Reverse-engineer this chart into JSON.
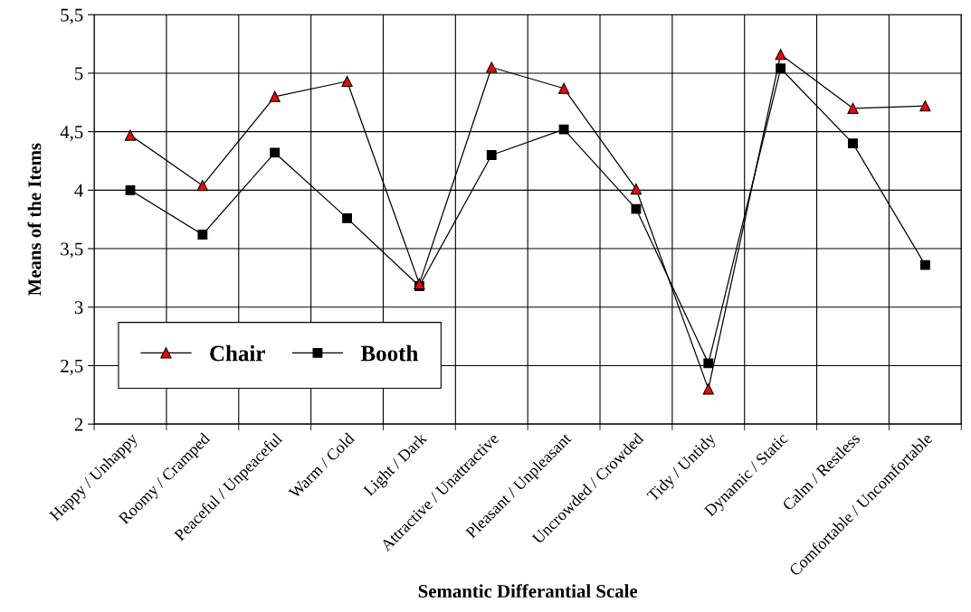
{
  "chart_data": {
    "type": "line",
    "xlabel": "Semantic Differantial Scale",
    "ylabel": "Means of the Items",
    "categories": [
      "Happy / Unhappy",
      "Roomy / Cramped",
      "Peaceful / Unpeaceful",
      "Warm / Cold",
      "Light / Dark",
      "Attractive / Unattractive",
      "Pleasant / Unpleasant",
      "Uncrowded / Crowded",
      "Tidy / Untidy",
      "Dynamic / Static",
      "Calm / Restless",
      "Comfortable / Uncomfortable"
    ],
    "series": [
      {
        "name": "Chair",
        "color": "#ff0000",
        "marker": "triangle",
        "values": [
          4.47,
          4.04,
          4.8,
          4.93,
          3.2,
          5.05,
          4.87,
          4.01,
          2.3,
          5.16,
          4.7,
          4.72
        ]
      },
      {
        "name": "Booth",
        "color": "#000000",
        "marker": "square",
        "values": [
          4.0,
          3.62,
          4.32,
          3.76,
          3.18,
          4.3,
          4.52,
          3.84,
          2.52,
          5.04,
          4.4,
          3.36
        ]
      }
    ],
    "ylim": [
      2,
      5.5
    ],
    "yticks": [
      {
        "value": 2,
        "label": "2"
      },
      {
        "value": 2.5,
        "label": "2,5"
      },
      {
        "value": 3,
        "label": "3"
      },
      {
        "value": 3.5,
        "label": "3,5"
      },
      {
        "value": 4,
        "label": "4"
      },
      {
        "value": 4.5,
        "label": "4,5"
      },
      {
        "value": 5,
        "label": "5"
      },
      {
        "value": 5.5,
        "label": "5,5"
      }
    ],
    "grid": true,
    "legend": "bottom left",
    "line_style": "solid"
  }
}
